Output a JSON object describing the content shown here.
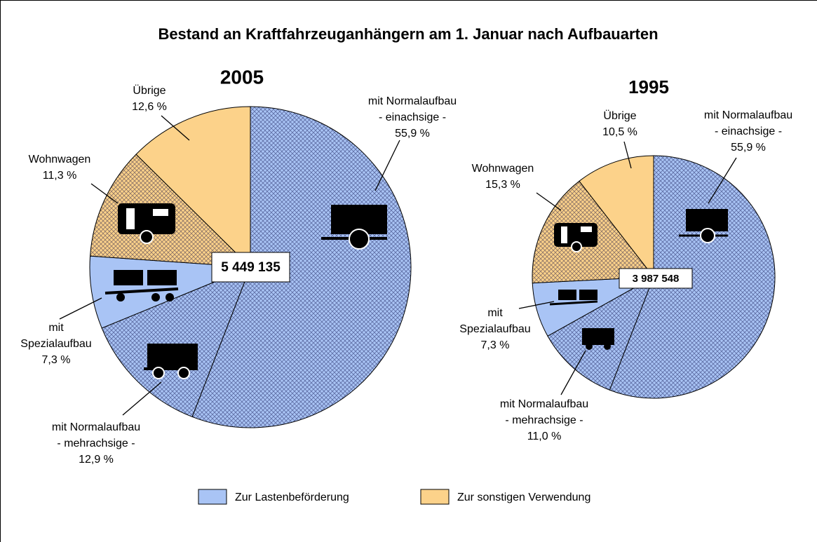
{
  "title": "Bestand an Kraftfahrzeuganhängern am 1. Januar nach Aufbauarten",
  "legend": [
    {
      "name": "Zur Lastenbeförderung",
      "color": "#a9c4f5"
    },
    {
      "name": "Zur sonstigen Verwendung",
      "color": "#fcd28a"
    }
  ],
  "chart_data": [
    {
      "type": "pie",
      "title": "2005",
      "total_label": "5 449 135",
      "categories": [
        [
          "mit Normalaufbau",
          "- einachsige -"
        ],
        [
          "mit Normalaufbau",
          "- mehrachsige -"
        ],
        [
          "mit",
          "Spezialaufbau"
        ],
        [
          "Wohnwagen"
        ],
        [
          "Übrige"
        ]
      ],
      "values": [
        55.9,
        12.9,
        7.3,
        11.3,
        12.6
      ],
      "value_labels": [
        "55,9 %",
        "12,9 %",
        "7,3 %",
        "11,3 %",
        "12,6 %"
      ],
      "colors": [
        "#a9c4f5",
        "#a9c4f5",
        "#a9c4f5",
        "#fcd28a",
        "#fcd28a"
      ],
      "hatched": [
        true,
        true,
        false,
        true,
        false
      ]
    },
    {
      "type": "pie",
      "title": "1995",
      "total_label": "3 987 548",
      "categories": [
        [
          "mit Normalaufbau",
          "- einachsige -"
        ],
        [
          "mit Normalaufbau",
          "- mehrachsige -"
        ],
        [
          "mit",
          "Spezialaufbau"
        ],
        [
          "Wohnwagen"
        ],
        [
          "Übrige"
        ]
      ],
      "values": [
        55.9,
        11.0,
        7.3,
        15.3,
        10.5
      ],
      "value_labels": [
        "55,9 %",
        "11,0 %",
        "7,3 %",
        "15,3 %",
        "10,5 %"
      ],
      "colors": [
        "#a9c4f5",
        "#a9c4f5",
        "#a9c4f5",
        "#fcd28a",
        "#fcd28a"
      ],
      "hatched": [
        true,
        true,
        false,
        true,
        false
      ]
    }
  ]
}
